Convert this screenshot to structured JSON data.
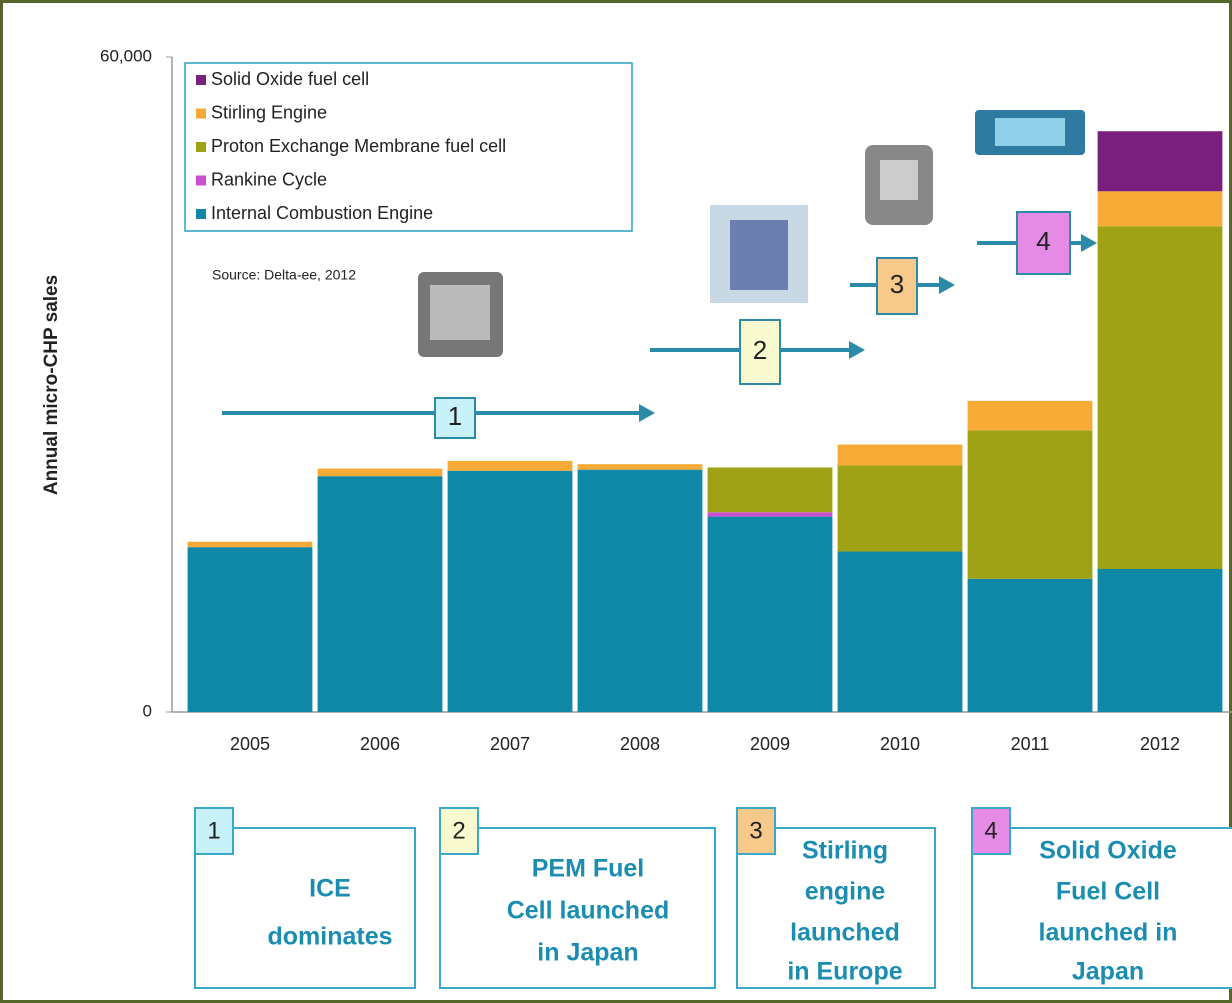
{
  "chart_data": {
    "type": "stacked_bar",
    "y_label": "Annual micro-CHP sales",
    "source": "Source: Delta-ee, 2012",
    "categories": [
      "2005",
      "2006",
      "2007",
      "2008",
      "2009",
      "2010",
      "2011",
      "2012"
    ],
    "series": [
      {
        "name": "Internal Combustion Engine",
        "color": "#0f87a6",
        "values": [
          15100,
          21600,
          22100,
          22200,
          17900,
          14700,
          12200,
          13100
        ]
      },
      {
        "name": "Rankine Cycle",
        "color": "#c84fd0",
        "values": [
          0,
          0,
          0,
          0,
          400,
          0,
          0,
          0
        ]
      },
      {
        "name": "Proton Exchange Membrane fuel cell",
        "color": "#a0a215",
        "values": [
          0,
          0,
          0,
          0,
          4100,
          7900,
          13600,
          31400
        ]
      },
      {
        "name": "Stirling Engine",
        "color": "#f7aa35",
        "values": [
          500,
          700,
          900,
          500,
          0,
          1900,
          2700,
          3200
        ]
      },
      {
        "name": "Solid Oxide fuel cell",
        "color": "#7a1f7e",
        "values": [
          0,
          0,
          0,
          0,
          0,
          0,
          0,
          5500
        ]
      }
    ],
    "ylim": [
      0,
      60000
    ],
    "yticks": [
      0,
      {
        "value": 60000,
        "label": "60,000"
      }
    ],
    "legend": "top-left",
    "annotations": {
      "arrows": [
        "1",
        "2",
        "3",
        "4"
      ],
      "boxes": [
        {
          "number": "1",
          "lines": [
            "ICE",
            "dominates"
          ]
        },
        {
          "number": "2",
          "lines": [
            "PEM Fuel",
            "Cell launched",
            "in Japan"
          ]
        },
        {
          "number": "3",
          "lines": [
            "Stirling",
            "engine",
            "launched",
            "in Europe"
          ]
        },
        {
          "number": "4",
          "lines": [
            "Solid Oxide",
            "Fuel Cell",
            "launched in",
            "Japan"
          ]
        }
      ]
    }
  }
}
